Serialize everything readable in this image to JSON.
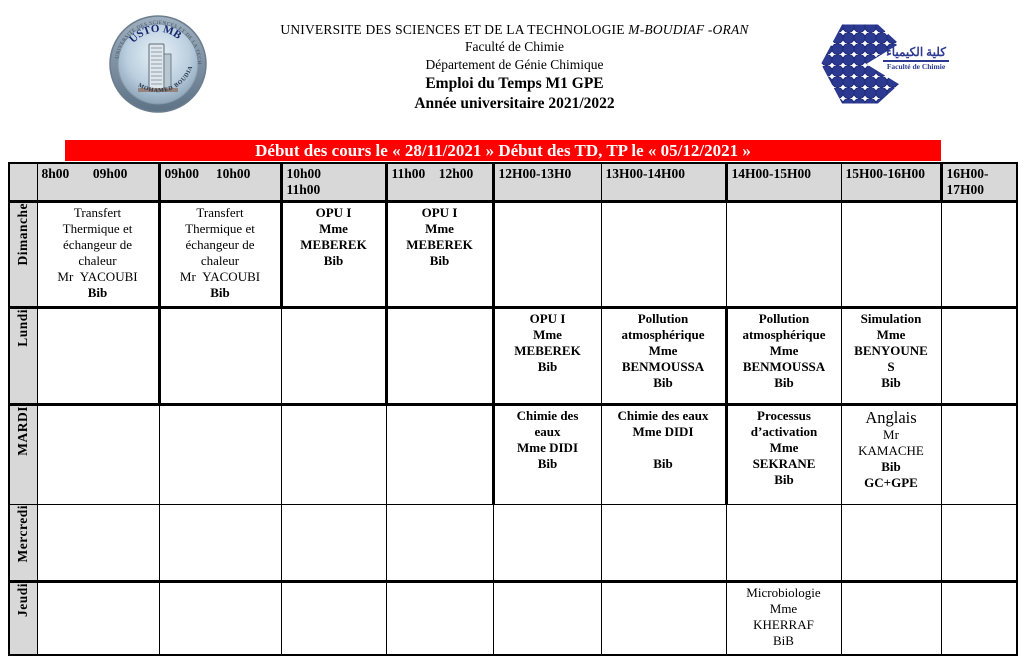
{
  "header": {
    "university_prefix": "UNIVERSITE DES SCIENCES ET DE LA TECHNOLOGIE ",
    "university_italic": "M-BOUDIAF -ORAN",
    "faculty": "Faculté de Chimie",
    "department": "Département de Génie Chimique",
    "title": "Emploi du Temps M1 GPE",
    "year": "Année universitaire 2021/2022",
    "left_logo": {
      "ring_text": "UNIVERSITE DES SCIENCES ET DE LA TECHNOLOGIE D'ORAN",
      "name_text": "USTO MB",
      "bottom_text": "MOHAMED BOUDIAF"
    },
    "right_logo": {
      "caption_ar": "كلية الكيمياء",
      "caption_fr": "Faculté de Chimie"
    }
  },
  "banner": {
    "text": "Début des cours le « 28/11/2021 » Début des TD, TP le « 05/12/2021 »",
    "bg": "#FF0000",
    "fg": "#FFFFFF"
  },
  "colors": {
    "grid_gray": "#D8D8D8",
    "logo_blue": "#2B3990"
  },
  "timetable": {
    "time_headers": [
      "8h00       09h00",
      "09h00     10h00",
      "10h00\n11h00",
      "11h00    12h00",
      "12H00-13H0",
      "13H00-14H00",
      "14H00-15H00",
      "15H00-16H00",
      "16H00-\n17H00"
    ],
    "days": [
      {
        "label": "Dimanche",
        "cells": [
          {
            "lines": [
              {
                "t": "Transfert"
              },
              {
                "t": "Thermique et"
              },
              {
                "t": "échangeur de"
              },
              {
                "t": "chaleur"
              },
              {
                "t": "Mr  YACOUBI"
              },
              {
                "t": "Bib",
                "b": true
              }
            ]
          },
          {
            "lines": [
              {
                "t": "Transfert"
              },
              {
                "t": "Thermique et"
              },
              {
                "t": "échangeur de"
              },
              {
                "t": "chaleur"
              },
              {
                "t": "Mr  YACOUBI"
              },
              {
                "t": "Bib",
                "b": true
              }
            ]
          },
          {
            "lines": [
              {
                "t": "OPU I",
                "b": true
              },
              {
                "t": "Mme",
                "b": true
              },
              {
                "t": "MEBEREK",
                "b": true
              },
              {
                "t": "Bib",
                "b": true
              }
            ]
          },
          {
            "lines": [
              {
                "t": "OPU I",
                "b": true
              },
              {
                "t": "Mme",
                "b": true
              },
              {
                "t": "MEBEREK",
                "b": true
              },
              {
                "t": "Bib",
                "b": true
              }
            ]
          },
          {
            "lines": []
          },
          {
            "lines": []
          },
          {
            "lines": []
          },
          {
            "lines": []
          },
          {
            "lines": []
          }
        ]
      },
      {
        "label": "Lundi",
        "cells": [
          {
            "lines": []
          },
          {
            "lines": []
          },
          {
            "lines": []
          },
          {
            "lines": []
          },
          {
            "lines": [
              {
                "t": "OPU I",
                "b": true
              },
              {
                "t": "Mme",
                "b": true
              },
              {
                "t": "MEBEREK",
                "b": true
              },
              {
                "t": "Bib",
                "b": true
              }
            ]
          },
          {
            "lines": [
              {
                "t": "Pollution",
                "b": true
              },
              {
                "t": "atmosphérique",
                "b": true
              },
              {
                "t": "Mme",
                "b": true
              },
              {
                "t": "BENMOUSSA",
                "b": true
              },
              {
                "t": "Bib",
                "b": true
              }
            ]
          },
          {
            "lines": [
              {
                "t": "Pollution",
                "b": true
              },
              {
                "t": "atmosphérique",
                "b": true
              },
              {
                "t": "Mme",
                "b": true
              },
              {
                "t": "BENMOUSSA",
                "b": true
              },
              {
                "t": "Bib",
                "b": true
              }
            ]
          },
          {
            "lines": [
              {
                "t": "Simulation",
                "b": true
              },
              {
                "t": "Mme",
                "b": true
              },
              {
                "t": "BENYOUNE",
                "b": true
              },
              {
                "t": "S",
                "b": true
              },
              {
                "t": "Bib",
                "b": true
              }
            ]
          },
          {
            "lines": []
          }
        ]
      },
      {
        "label": "MARDI",
        "cells": [
          {
            "lines": []
          },
          {
            "lines": []
          },
          {
            "lines": []
          },
          {
            "lines": []
          },
          {
            "lines": [
              {
                "t": "Chimie des",
                "b": true
              },
              {
                "t": "eaux",
                "b": true
              },
              {
                "t": "Mme DIDI",
                "b": true
              },
              {
                "t": "Bib",
                "b": true
              }
            ]
          },
          {
            "lines": [
              {
                "t": "Chimie des eaux",
                "b": true
              },
              {
                "t": "Mme DIDI",
                "b": true
              },
              {
                "t": ""
              },
              {
                "t": "Bib",
                "b": true
              }
            ]
          },
          {
            "lines": [
              {
                "t": "Processus",
                "b": true
              },
              {
                "t": "d’activation",
                "b": true
              },
              {
                "t": "Mme",
                "b": true
              },
              {
                "t": "SEKRANE",
                "b": true
              },
              {
                "t": "Bib",
                "b": true
              }
            ]
          },
          {
            "lines": [
              {
                "t": "Anglais",
                "lg": true
              },
              {
                "t": "Mr"
              },
              {
                "t": "KAMACHE"
              },
              {
                "t": "Bib",
                "b": true
              },
              {
                "t": "GC+GPE",
                "b": true
              }
            ]
          },
          {
            "lines": []
          }
        ]
      },
      {
        "label": "Mercredi",
        "cells": [
          {
            "lines": []
          },
          {
            "lines": []
          },
          {
            "lines": []
          },
          {
            "lines": []
          },
          {
            "lines": []
          },
          {
            "lines": []
          },
          {
            "lines": []
          },
          {
            "lines": []
          },
          {
            "lines": []
          }
        ]
      },
      {
        "label": "Jeudi",
        "cells": [
          {
            "lines": []
          },
          {
            "lines": []
          },
          {
            "lines": []
          },
          {
            "lines": []
          },
          {
            "lines": []
          },
          {
            "lines": []
          },
          {
            "lines": [
              {
                "t": "Microbiologie"
              },
              {
                "t": "Mme"
              },
              {
                "t": "KHERRAF"
              },
              {
                "t": "BiB"
              }
            ]
          },
          {
            "lines": []
          },
          {
            "lines": []
          }
        ]
      }
    ]
  }
}
